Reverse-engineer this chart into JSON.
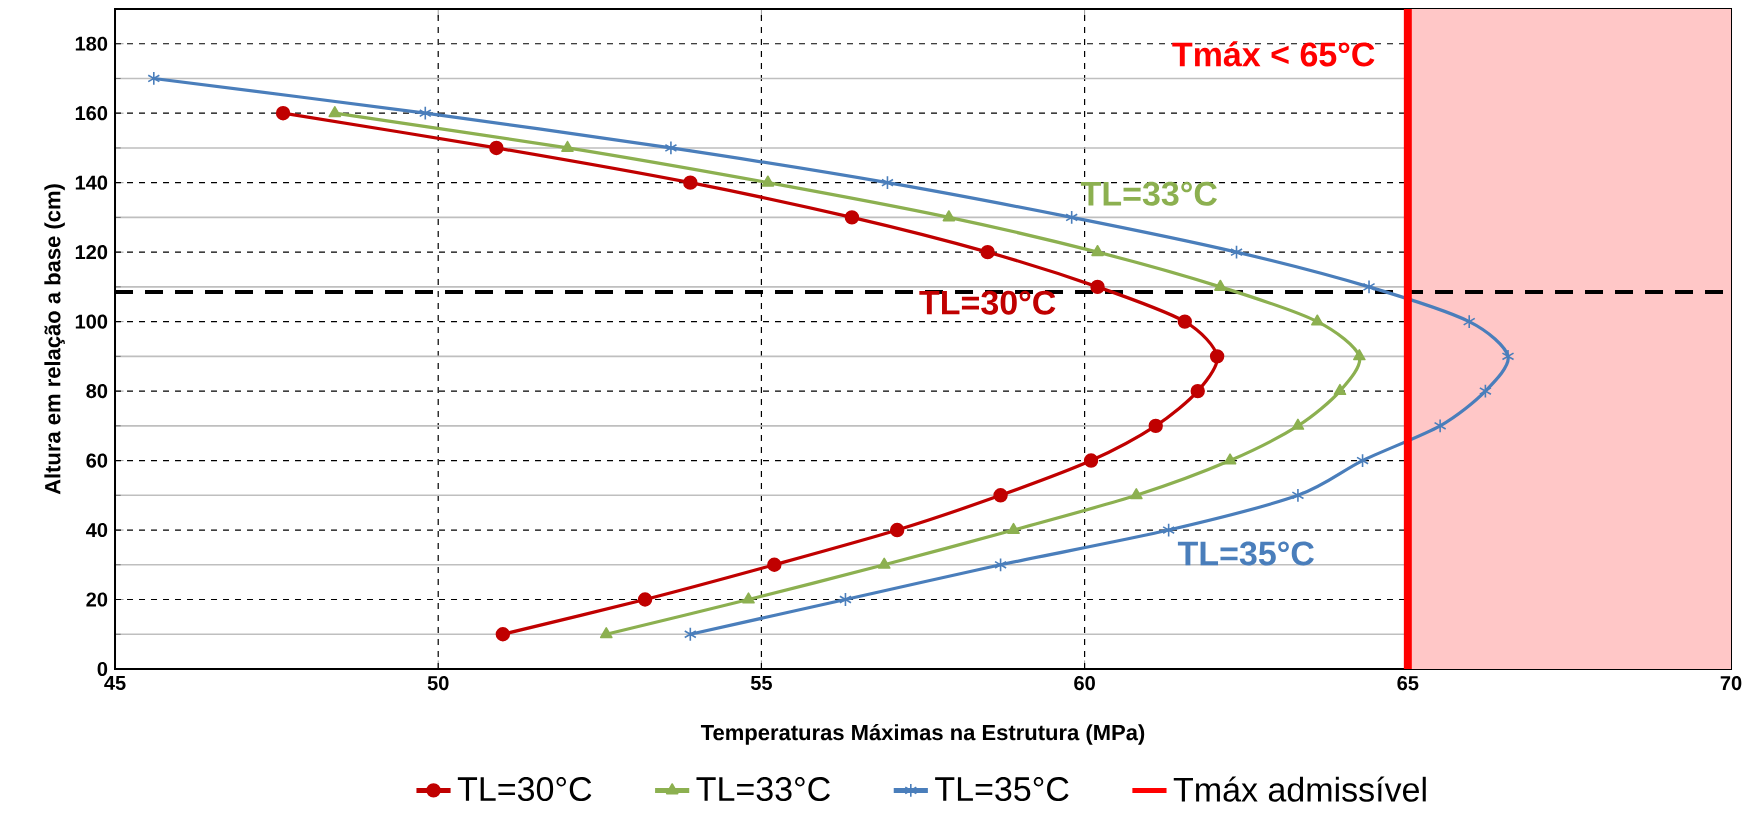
{
  "chart_data": {
    "type": "line",
    "xlabel": "Temperaturas Máximas na Estrutura (MPa)",
    "ylabel": "Altura em relação a base (cm)",
    "xlim": [
      45,
      70
    ],
    "xticks": [
      45,
      50,
      55,
      60,
      65,
      70
    ],
    "ylim": [
      0,
      190
    ],
    "yticks": [
      0,
      20,
      40,
      60,
      80,
      100,
      120,
      140,
      160,
      180
    ],
    "grid": true,
    "legend": "bottom",
    "series": [
      {
        "name": "TL=30°C",
        "color": "#c00000",
        "marker": "circle",
        "x": [
          51.0,
          53.2,
          55.2,
          57.1,
          58.7,
          60.1,
          61.1,
          61.75,
          62.05,
          61.55,
          60.2,
          58.5,
          56.4,
          53.9,
          50.9,
          47.6
        ],
        "values": [
          10,
          20,
          30,
          40,
          50,
          60,
          70,
          80,
          90,
          100,
          110,
          120,
          130,
          140,
          150,
          160
        ]
      },
      {
        "name": "TL=33°C",
        "color": "#8cb050",
        "marker": "triangle",
        "x": [
          52.6,
          54.8,
          56.9,
          58.9,
          60.8,
          62.25,
          63.3,
          63.95,
          64.25,
          63.6,
          62.1,
          60.2,
          57.9,
          55.1,
          52.0,
          48.4
        ],
        "values": [
          10,
          20,
          30,
          40,
          50,
          60,
          70,
          80,
          90,
          100,
          110,
          120,
          130,
          140,
          150,
          160
        ]
      },
      {
        "name": "TL=35°C",
        "color": "#4a7ebb",
        "marker": "cross",
        "x": [
          53.9,
          56.3,
          58.7,
          61.3,
          63.3,
          64.3,
          65.5,
          66.2,
          66.55,
          65.95,
          64.4,
          62.35,
          59.8,
          56.95,
          53.6,
          49.8,
          45.6
        ],
        "values": [
          10,
          20,
          30,
          40,
          50,
          60,
          70,
          80,
          90,
          100,
          110,
          120,
          130,
          140,
          150,
          160,
          170
        ]
      },
      {
        "name": "Tmáx admissível",
        "color": "#ff0000",
        "marker": "none",
        "x": [
          65,
          65
        ],
        "values": [
          0,
          190
        ]
      }
    ],
    "ref_lines": [
      {
        "axis": "y",
        "value": 108.5,
        "color": "#000000",
        "line_style": "dashed"
      }
    ],
    "bands": [
      {
        "axis": "x",
        "from": 65,
        "to": 70,
        "color": "#ffc7c7"
      }
    ],
    "annotations": [
      "Tmáx < 65°C",
      "TL=33°C",
      "TL=30°C",
      "TL=35°C"
    ]
  }
}
